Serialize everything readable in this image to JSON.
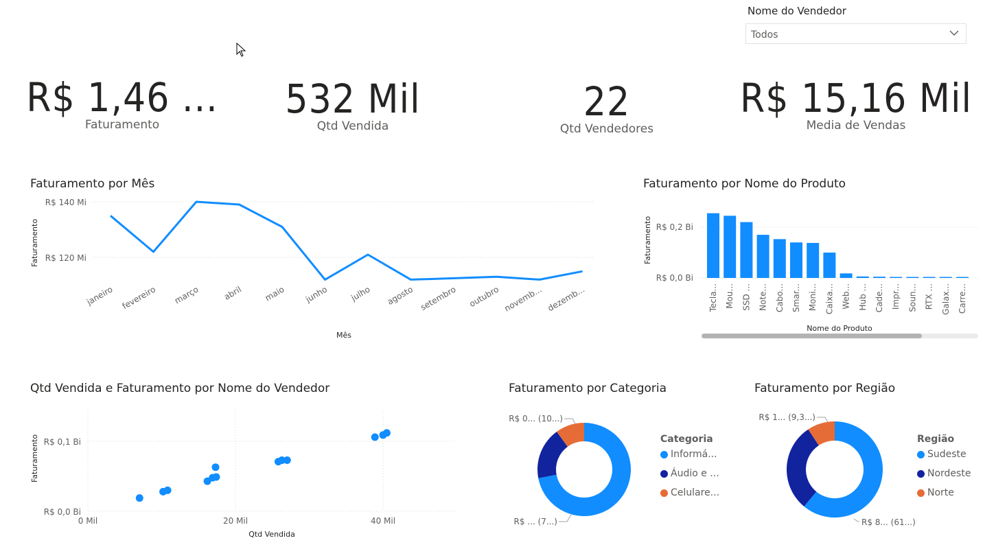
{
  "slicer": {
    "title": "Nome do Vendedor",
    "value": "Todos"
  },
  "kpis": [
    {
      "value": "R$ 1,46 ...",
      "label": "Faturamento"
    },
    {
      "value": "532 Mil",
      "label": "Qtd Vendida"
    },
    {
      "value": "22",
      "label": "Qtd Vendedores"
    },
    {
      "value": "R$ 15,16 Mil",
      "label": "Media de Vendas"
    }
  ],
  "colors": {
    "primary": "#118DFF",
    "dark_blue": "#12239E",
    "orange": "#E66C37",
    "text": "#252423",
    "muted": "#605e5c"
  },
  "line_chart": {
    "title": "Faturamento por Mês",
    "xlabel": "Mês",
    "ylabel": "Faturamento",
    "ytick_labels": [
      "R$ 140 Mi",
      "R$ 120 Mi"
    ],
    "categories": [
      "janeiro",
      "fevereiro",
      "março",
      "abril",
      "maio",
      "junho",
      "julho",
      "agosto",
      "setembro",
      "outubro",
      "novemb...",
      "dezemb..."
    ]
  },
  "bar_chart": {
    "title": "Faturamento por Nome do Produto",
    "xlabel": "Nome do Produto",
    "ylabel": "Faturamento",
    "ytick_labels": [
      "R$ 0,2 Bi",
      "R$ 0,0 Bi"
    ],
    "categories": [
      "Tecla...",
      "Mou...",
      "SSD ...",
      "Note...",
      "Cabo...",
      "Smar...",
      "Moni...",
      "Caixa...",
      "Web...",
      "Hub ...",
      "Cade...",
      "Impr...",
      "Soun...",
      "RTX ...",
      "Galax...",
      "Carre..."
    ]
  },
  "scatter_chart": {
    "title": "Qtd Vendida e Faturamento por Nome do Vendedor",
    "xlabel": "Qtd Vendida",
    "ylabel": "Faturamento",
    "xtick_labels": [
      "0 Mil",
      "20 Mil",
      "40 Mil"
    ],
    "ytick_labels": [
      "R$ 0,1 Bi",
      "R$ 0,0 Bi"
    ]
  },
  "donut_categoria": {
    "title": "Faturamento por Categoria",
    "legend_title": "Categoria",
    "legend": [
      "Informá...",
      "Áudio e ...",
      "Celulare..."
    ],
    "label_top": "R$ 0... (10...)",
    "label_bottom": "R$ ... (7...)"
  },
  "donut_regiao": {
    "title": "Faturamento por Região",
    "legend_title": "Região",
    "legend": [
      "Sudeste",
      "Nordeste",
      "Norte"
    ],
    "label_top": "R$ 1... (9,3...)",
    "label_bottom": "R$ 8... (61...)"
  },
  "chart_data": [
    {
      "type": "line",
      "title": "Faturamento por Mês",
      "xlabel": "Mês",
      "ylabel": "Faturamento",
      "categories": [
        "janeiro",
        "fevereiro",
        "março",
        "abril",
        "maio",
        "junho",
        "julho",
        "agosto",
        "setembro",
        "outubro",
        "novembro",
        "dezembro"
      ],
      "values": [
        135,
        122,
        140,
        139,
        131,
        112,
        121,
        112,
        112.5,
        113,
        112,
        115
      ],
      "ylim": [
        108,
        142
      ],
      "unit": "R$ Mi",
      "grid": true
    },
    {
      "type": "bar",
      "title": "Faturamento por Nome do Produto",
      "xlabel": "Nome do Produto",
      "ylabel": "Faturamento",
      "categories": [
        "Tecla...",
        "Mou...",
        "SSD ...",
        "Note...",
        "Cabo...",
        "Smar...",
        "Moni...",
        "Caixa...",
        "Web...",
        "Hub ...",
        "Cade...",
        "Impr...",
        "Soun...",
        "RTX ...",
        "Galax...",
        "Carre..."
      ],
      "values": [
        0.255,
        0.245,
        0.22,
        0.17,
        0.153,
        0.14,
        0.138,
        0.1,
        0.018,
        0.006,
        0.005,
        0.004,
        0.004,
        0.003,
        0.003,
        0.003
      ],
      "ylim": [
        0,
        0.3
      ],
      "unit": "R$ Bi",
      "grid": true
    },
    {
      "type": "scatter",
      "title": "Qtd Vendida e Faturamento por Nome do Vendedor",
      "xlabel": "Qtd Vendida",
      "ylabel": "Faturamento",
      "points": [
        {
          "x": 7,
          "y": 0.019
        },
        {
          "x": 10.2,
          "y": 0.028
        },
        {
          "x": 10.8,
          "y": 0.03
        },
        {
          "x": 16.2,
          "y": 0.043
        },
        {
          "x": 16.9,
          "y": 0.048
        },
        {
          "x": 17.4,
          "y": 0.049
        },
        {
          "x": 17.3,
          "y": 0.063
        },
        {
          "x": 25.8,
          "y": 0.071
        },
        {
          "x": 26.3,
          "y": 0.073
        },
        {
          "x": 27,
          "y": 0.073
        },
        {
          "x": 38.9,
          "y": 0.106
        },
        {
          "x": 40,
          "y": 0.109
        },
        {
          "x": 40.5,
          "y": 0.112
        }
      ],
      "xlim": [
        0,
        49
      ],
      "ylim": [
        0,
        0.14
      ],
      "grid": true
    },
    {
      "type": "pie",
      "title": "Faturamento por Categoria",
      "legend_title": "Categoria",
      "slices": [
        {
          "name": "Informá...",
          "value": 0.72
        },
        {
          "name": "Áudio e ...",
          "value": 0.18
        },
        {
          "name": "Celulare...",
          "value": 0.1
        }
      ]
    },
    {
      "type": "pie",
      "title": "Faturamento por Região",
      "legend_title": "Região",
      "slices": [
        {
          "name": "Sudeste",
          "value": 0.61
        },
        {
          "name": "Nordeste",
          "value": 0.297
        },
        {
          "name": "Norte",
          "value": 0.093
        }
      ]
    }
  ]
}
